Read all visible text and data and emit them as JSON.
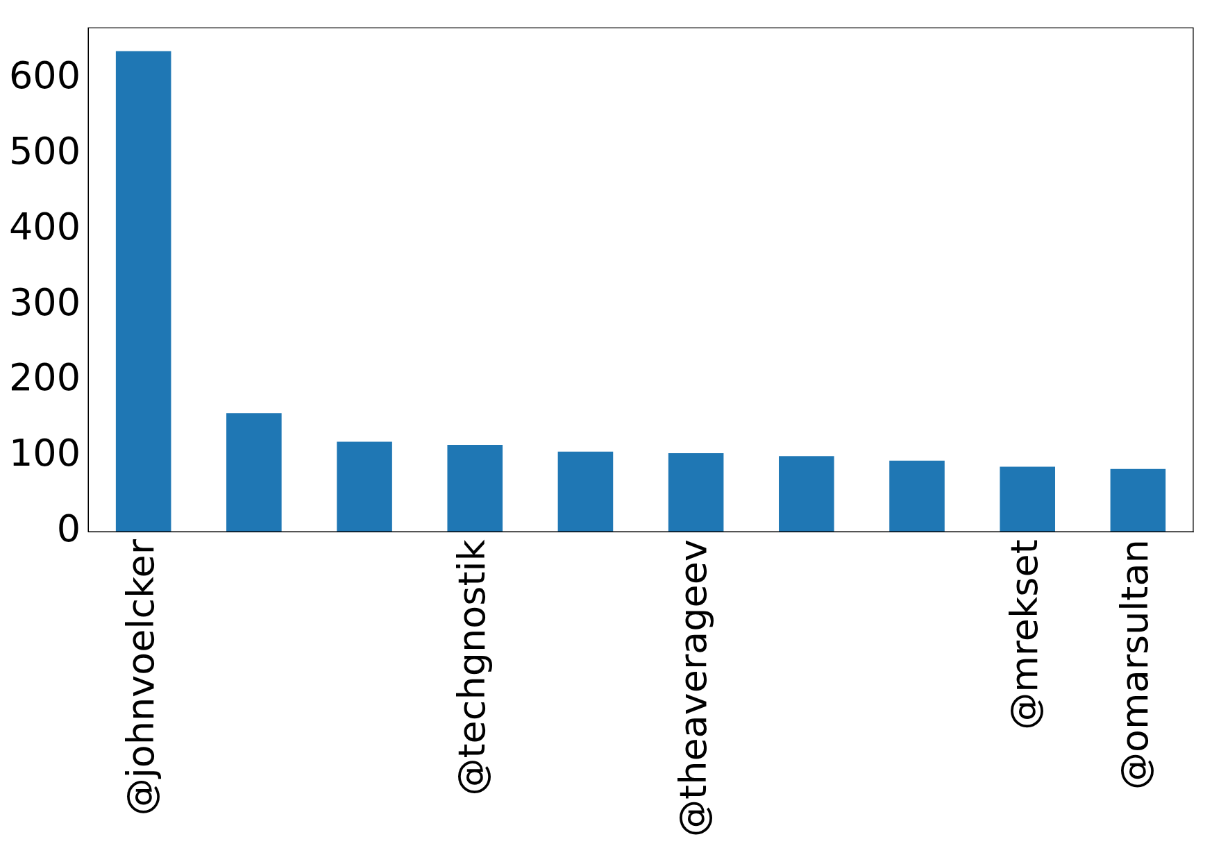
{
  "chart_data": {
    "type": "bar",
    "categories": [
      "@johnvoelcker",
      null,
      null,
      "@techgnostik",
      null,
      "@theaverageev",
      null,
      null,
      "@mrekset",
      "@omarsultan"
    ],
    "values": [
      636,
      157,
      119,
      115,
      106,
      104,
      100,
      94,
      86,
      83
    ],
    "color": "#1f77b4",
    "ylim": [
      0,
      667
    ],
    "yticks": [
      0,
      100,
      200,
      300,
      400,
      500,
      600
    ],
    "grid": false,
    "legend": false
  }
}
